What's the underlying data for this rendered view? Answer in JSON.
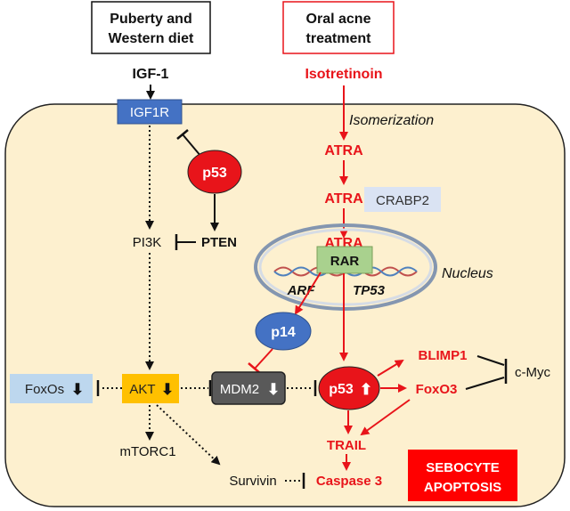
{
  "header": {
    "left_box": {
      "line1": "Puberty and",
      "line2": "Western diet"
    },
    "right_box": {
      "line1": "Oral acne",
      "line2": "treatment"
    }
  },
  "inputs": {
    "igf1": "IGF-1",
    "isotretinoin": "Isotretinoin",
    "isomerization": "Isomerization"
  },
  "nodes": {
    "igf1r": "IGF1R",
    "p53_top": "p53",
    "atra_1": "ATRA",
    "atra_2": "ATRA",
    "crabp2": "CRABP2",
    "pi3k": "PI3K",
    "pten": "PTEN",
    "atra_3": "ATRA",
    "rar": "RAR",
    "nucleus": "Nucleus",
    "arf": "ARF",
    "tp53": "TP53",
    "p14": "p14",
    "foxos": "FoxOs",
    "akt": "AKT",
    "mdm2": "MDM2",
    "p53_mid": "p53",
    "blimp1": "BLIMP1",
    "foxo3": "FoxO3",
    "cmyc": "c-Myc",
    "mtorc1": "mTORC1",
    "survivin": "Survivin",
    "trail": "TRAIL",
    "caspase3": "Caspase 3"
  },
  "arrows_glyph": {
    "down": "⬇",
    "up": "⬆"
  },
  "outcome": {
    "line1": "SEBOCYTE",
    "line2": "APOPTOSIS"
  },
  "colors": {
    "cell_fill": "#fdf0cf",
    "cell_stroke": "#222222",
    "red": "#e8141a",
    "igf1r_fill": "#4472c4",
    "p14_fill": "#4472c4",
    "akt_fill": "#ffc000",
    "mdm2_fill": "#595959",
    "foxos_fill": "#bdd7ee",
    "crabp2_fill": "#dae3f3",
    "rar_fill": "#a9d18e",
    "nucleus_stroke": "#8496b0",
    "outcome_fill": "#ff0000"
  }
}
